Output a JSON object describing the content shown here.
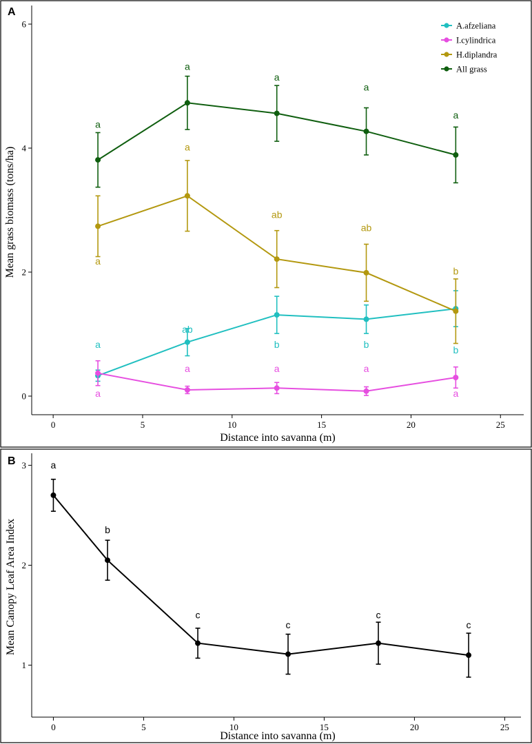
{
  "chart_data": [
    {
      "type": "line",
      "panel_label": "A",
      "xlabel": "Distance into savanna (m)",
      "ylabel": "Mean grass biomass (tons/ha)",
      "xlim": [
        -1.2,
        26.3
      ],
      "ylim": [
        -0.3,
        6.3
      ],
      "xticks": [
        0,
        5,
        10,
        15,
        20,
        25
      ],
      "yticks": [
        0,
        2,
        4,
        6
      ],
      "legend_position": "top-right",
      "x": [
        2.5,
        7.5,
        12.5,
        17.5,
        22.5
      ],
      "series": [
        {
          "name": "A.afzeliana",
          "color": "#20BFC0",
          "values": [
            0.33,
            0.87,
            1.31,
            1.24,
            1.41
          ],
          "errors": [
            0.09,
            0.22,
            0.3,
            0.23,
            0.29
          ],
          "letters": [
            "a",
            "ab",
            "b",
            "b",
            "b"
          ],
          "letter_y": [
            0.78,
            1.02,
            0.78,
            0.78,
            0.69
          ]
        },
        {
          "name": "I.cylindrica",
          "color": "#E64EE0",
          "values": [
            0.37,
            0.1,
            0.13,
            0.08,
            0.3
          ],
          "errors": [
            0.2,
            0.06,
            0.09,
            0.07,
            0.17
          ],
          "letters": [
            "a",
            "a",
            "a",
            "a",
            "a"
          ],
          "letter_y": [
            -0.01,
            0.39,
            0.39,
            0.39,
            -0.01
          ]
        },
        {
          "name": "H.diplandra",
          "color": "#B3980F",
          "values": [
            2.74,
            3.23,
            2.21,
            1.99,
            1.37
          ],
          "errors": [
            0.49,
            0.57,
            0.46,
            0.46,
            0.52
          ],
          "letters": [
            "a",
            "a",
            "ab",
            "ab",
            "b"
          ],
          "letter_y": [
            2.12,
            3.96,
            2.87,
            2.66,
            1.96
          ]
        },
        {
          "name": "All grass",
          "color": "#0F5E0F",
          "values": [
            3.81,
            4.73,
            4.56,
            4.27,
            3.89
          ],
          "errors": [
            0.44,
            0.43,
            0.45,
            0.38,
            0.45
          ],
          "letters": [
            "a",
            "a",
            "a",
            "a",
            "a"
          ],
          "letter_y": [
            4.33,
            5.26,
            5.09,
            4.93,
            4.48
          ]
        }
      ]
    },
    {
      "type": "line",
      "panel_label": "B",
      "xlabel": "Distance into savanna (m)",
      "ylabel": "Mean Canopy Leaf Area Index",
      "xlim": [
        -1.2,
        25.9
      ],
      "ylim": [
        0.48,
        3.12
      ],
      "xticks": [
        0,
        5,
        10,
        15,
        20,
        25
      ],
      "yticks": [
        1,
        2,
        3
      ],
      "series": [
        {
          "name": "Canopy LAI",
          "color": "#000000",
          "x": [
            0,
            3,
            8,
            13,
            18,
            23
          ],
          "values": [
            2.7,
            2.05,
            1.22,
            1.11,
            1.22,
            1.1
          ],
          "errors": [
            0.16,
            0.2,
            0.15,
            0.2,
            0.21,
            0.22
          ],
          "letters": [
            "a",
            "b",
            "c",
            "c",
            "c",
            "c"
          ],
          "letter_y": [
            2.97,
            2.32,
            1.47,
            1.37,
            1.47,
            1.37
          ]
        }
      ]
    }
  ]
}
